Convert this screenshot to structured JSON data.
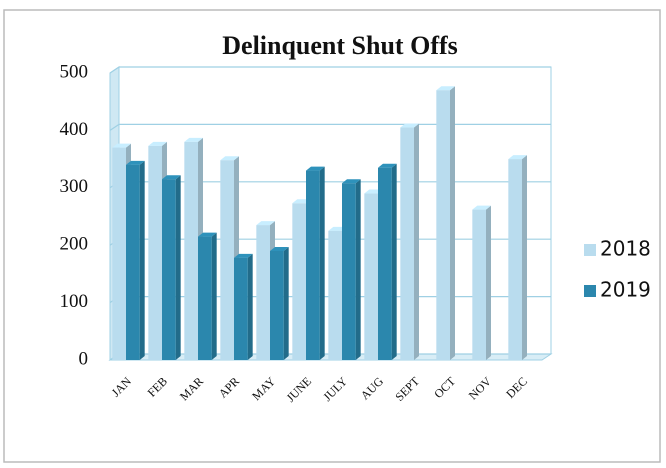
{
  "chart_data": {
    "type": "bar",
    "title": "Delinquent Shut Offs",
    "categories": [
      "JAN",
      "FEB",
      "MAR",
      "APR",
      "MAY",
      "JUNE",
      "JULY",
      "AUG",
      "SEPT",
      "OCT",
      "NOV",
      "DEC"
    ],
    "series": [
      {
        "name": "2018",
        "color": "#b9dcee",
        "values": [
          370,
          373,
          380,
          348,
          235,
          273,
          225,
          290,
          405,
          470,
          262,
          350
        ]
      },
      {
        "name": "2019",
        "color": "#2b87ad",
        "values": [
          340,
          315,
          215,
          178,
          190,
          330,
          308,
          335,
          null,
          null,
          null,
          null
        ]
      }
    ],
    "ylim": [
      0,
      500
    ],
    "yticks": [
      0,
      100,
      200,
      300,
      400,
      500
    ],
    "grid": true,
    "legend": "right"
  }
}
